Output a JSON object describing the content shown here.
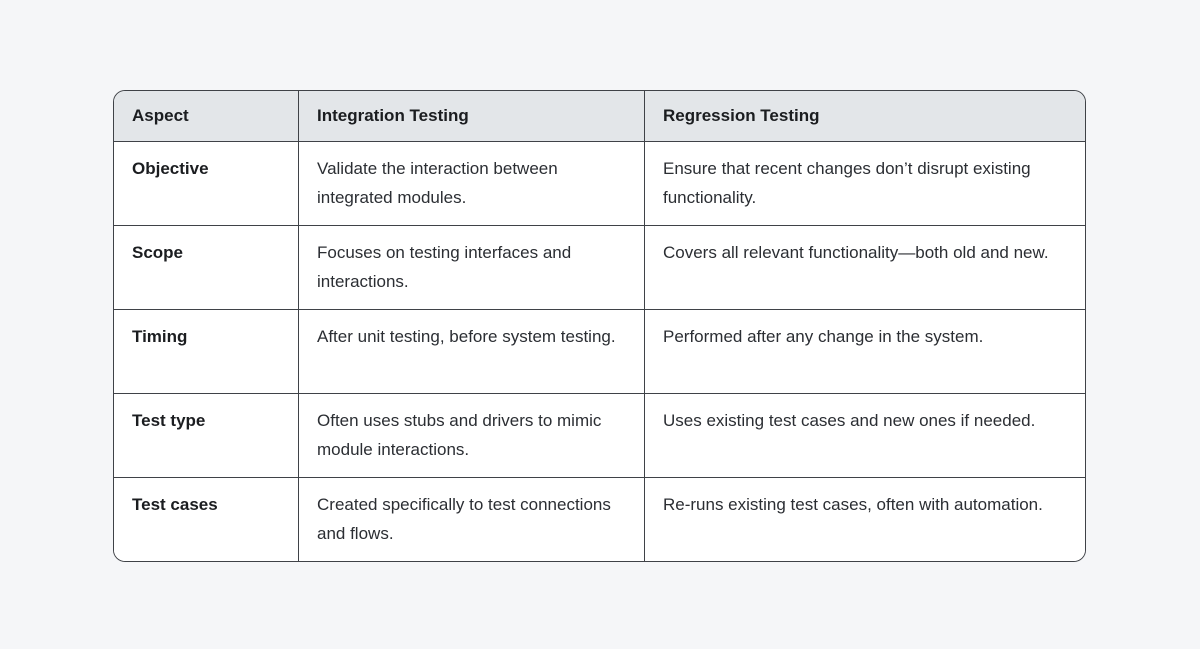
{
  "theme": {
    "page_bg": "#f5f6f8",
    "header_bg": "#e3e6e9",
    "cell_bg": "#ffffff",
    "border_color": "#3f4247",
    "heading_text": "#1b1d20",
    "body_text": "#2b2e33"
  },
  "table": {
    "columns": [
      "Aspect",
      "Integration Testing",
      "Regression Testing"
    ],
    "rows": [
      {
        "aspect": "Objective",
        "integration": "Validate the interaction between integrated modules.",
        "regression": "Ensure that recent changes don’t disrupt existing functionality."
      },
      {
        "aspect": "Scope",
        "integration": "Focuses on testing interfaces and interactions.",
        "regression": "Covers all relevant functionality—both old and new."
      },
      {
        "aspect": "Timing",
        "integration": "After unit testing, before system testing.",
        "regression": "Performed after any change in the system."
      },
      {
        "aspect": "Test type",
        "integration": "Often uses stubs and drivers to mimic module interactions.",
        "regression": "Uses existing test cases and new ones if needed."
      },
      {
        "aspect": "Test cases",
        "integration": "Created specifically to test connections and flows.",
        "regression": "Re-runs existing test cases, often with automation."
      }
    ]
  }
}
